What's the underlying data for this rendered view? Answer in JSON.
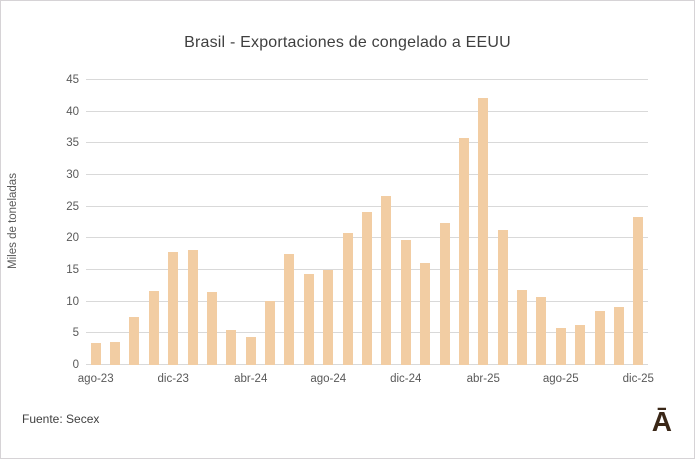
{
  "page": {
    "footer": {
      "source": "Fuente: Secex"
    },
    "logo": "Ā"
  },
  "chart_data": {
    "type": "bar",
    "title": "Brasil - Exportaciones de congelado a EEUU",
    "xlabel": "",
    "ylabel": "Miles de toneladas",
    "ylim": [
      0,
      45
    ],
    "ytick_step": 5,
    "grid": true,
    "legend_position": "none",
    "bar_color": "#F2CDA3",
    "gridline_color": "#D9D9D9",
    "tick_label_color": "#595959",
    "title_color": "#3F3F3F",
    "xtick_every": 4,
    "xtick_labels": [
      "ago-23",
      "dic-23",
      "abr-24",
      "ago-24",
      "dic-24",
      "abr-25",
      "ago-25",
      "dic-25"
    ],
    "categories": [
      "ago-23",
      "sep-23",
      "oct-23",
      "nov-23",
      "dic-23",
      "ene-24",
      "feb-24",
      "mar-24",
      "abr-24",
      "may-24",
      "jun-24",
      "jul-24",
      "ago-24",
      "sep-24",
      "oct-24",
      "nov-24",
      "dic-24",
      "ene-25",
      "feb-25",
      "mar-25",
      "abr-25",
      "may-25",
      "jun-25",
      "jul-25",
      "ago-25",
      "sep-25",
      "oct-25",
      "nov-25",
      "dic-25"
    ],
    "values": [
      3.4,
      3.6,
      7.6,
      11.7,
      17.9,
      18.2,
      11.6,
      5.6,
      4.5,
      10.1,
      17.5,
      14.4,
      15.0,
      20.9,
      24.2,
      26.7,
      19.7,
      16.1,
      22.4,
      35.9,
      42.1,
      21.3,
      11.9,
      10.7,
      5.9,
      6.3,
      8.5,
      9.2,
      23.3
    ]
  }
}
